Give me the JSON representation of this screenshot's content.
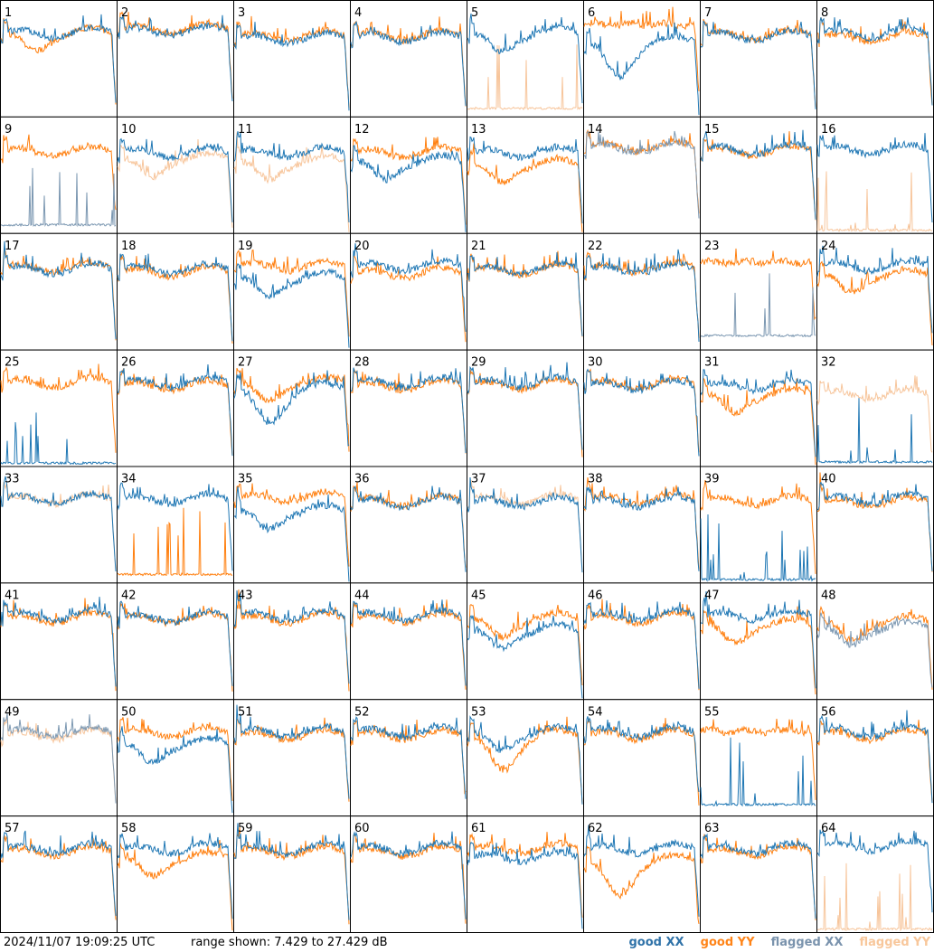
{
  "colors": {
    "good_xx": "#1f77b4",
    "good_yy": "#ff7f0e",
    "flagged_xx": "#7b97b1",
    "flagged_yy": "#f7c59b",
    "border": "#000000",
    "background": "#ffffff"
  },
  "footer": {
    "timestamp": "2024/11/07 19:09:25 UTC",
    "range_text": "range shown: 7.429 to 27.429 dB"
  },
  "legend": {
    "good_xx": "good XX",
    "good_yy": "good YY",
    "flagged_xx": "flagged XX",
    "flagged_yy": "flagged YY"
  },
  "chart_data": {
    "type": "line",
    "ylim": [
      7.429,
      27.429
    ],
    "grid": {
      "rows": 8,
      "cols": 8
    },
    "xlabel": "",
    "ylabel": "",
    "panels": [
      {
        "label": "1",
        "xx": {
          "status": "good",
          "profile": "normal",
          "level": 21.5
        },
        "yy": {
          "status": "good",
          "profile": "dip",
          "level": 21.5
        }
      },
      {
        "label": "2",
        "xx": {
          "status": "good",
          "profile": "normal",
          "level": 21.8
        },
        "yy": {
          "status": "good",
          "profile": "normal",
          "level": 22.3
        }
      },
      {
        "label": "3",
        "xx": {
          "status": "good",
          "profile": "normal",
          "level": 20.6
        },
        "yy": {
          "status": "good",
          "profile": "normal",
          "level": 21.0
        }
      },
      {
        "label": "4",
        "xx": {
          "status": "good",
          "profile": "normal",
          "level": 20.8
        },
        "yy": {
          "status": "good",
          "profile": "normal",
          "level": 21.0
        }
      },
      {
        "label": "5",
        "xx": {
          "status": "good",
          "profile": "dip",
          "level": 21.5
        },
        "yy": {
          "status": "flagged",
          "profile": "spikes",
          "level": 8.5
        }
      },
      {
        "label": "6",
        "xx": {
          "status": "good",
          "profile": "deepdip",
          "level": 18.0
        },
        "yy": {
          "status": "good",
          "profile": "flat",
          "level": 23.3
        }
      },
      {
        "label": "7",
        "xx": {
          "status": "good",
          "profile": "normal",
          "level": 21.0
        },
        "yy": {
          "status": "good",
          "profile": "normal",
          "level": 21.2
        }
      },
      {
        "label": "8",
        "xx": {
          "status": "good",
          "profile": "normal",
          "level": 21.5
        },
        "yy": {
          "status": "good",
          "profile": "normal",
          "level": 20.8
        }
      },
      {
        "label": "9",
        "xx": {
          "status": "flagged",
          "profile": "spikes",
          "level": 8.5
        },
        "yy": {
          "status": "good",
          "profile": "normal",
          "level": 21.2
        }
      },
      {
        "label": "10",
        "xx": {
          "status": "good",
          "profile": "normal",
          "level": 21.0
        },
        "yy": {
          "status": "flagged",
          "profile": "dip",
          "level": 20.0
        }
      },
      {
        "label": "11",
        "xx": {
          "status": "good",
          "profile": "normal",
          "level": 21.0
        },
        "yy": {
          "status": "flagged",
          "profile": "dip",
          "level": 19.5
        }
      },
      {
        "label": "12",
        "xx": {
          "status": "good",
          "profile": "dip",
          "level": 19.5
        },
        "yy": {
          "status": "good",
          "profile": "normal",
          "level": 21.0
        }
      },
      {
        "label": "13",
        "xx": {
          "status": "good",
          "profile": "normal",
          "level": 21.0
        },
        "yy": {
          "status": "good",
          "profile": "dip",
          "level": 19.0
        }
      },
      {
        "label": "14",
        "xx": {
          "status": "flagged",
          "profile": "normal",
          "level": 21.8
        },
        "yy": {
          "status": "good",
          "profile": "normal",
          "level": 22.0
        }
      },
      {
        "label": "15",
        "xx": {
          "status": "good",
          "profile": "normal",
          "level": 21.5
        },
        "yy": {
          "status": "good",
          "profile": "normal",
          "level": 21.2
        }
      },
      {
        "label": "16",
        "xx": {
          "status": "good",
          "profile": "normal",
          "level": 21.5
        },
        "yy": {
          "status": "flagged",
          "profile": "spikes",
          "level": 7.6
        }
      },
      {
        "label": "17",
        "xx": {
          "status": "good",
          "profile": "normal",
          "level": 21.0
        },
        "yy": {
          "status": "good",
          "profile": "normal",
          "level": 21.3
        }
      },
      {
        "label": "18",
        "xx": {
          "status": "good",
          "profile": "normal",
          "level": 21.0
        },
        "yy": {
          "status": "good",
          "profile": "normal",
          "level": 20.5
        }
      },
      {
        "label": "19",
        "xx": {
          "status": "good",
          "profile": "dip",
          "level": 19.5
        },
        "yy": {
          "status": "good",
          "profile": "normal",
          "level": 21.5
        }
      },
      {
        "label": "20",
        "xx": {
          "status": "good",
          "profile": "normal",
          "level": 21.5
        },
        "yy": {
          "status": "good",
          "profile": "normal",
          "level": 20.3
        }
      },
      {
        "label": "21",
        "xx": {
          "status": "good",
          "profile": "normal",
          "level": 21.0
        },
        "yy": {
          "status": "good",
          "profile": "normal",
          "level": 20.8
        }
      },
      {
        "label": "22",
        "xx": {
          "status": "good",
          "profile": "normal",
          "level": 21.0
        },
        "yy": {
          "status": "good",
          "profile": "normal",
          "level": 21.2
        }
      },
      {
        "label": "23",
        "xx": {
          "status": "flagged",
          "profile": "spikes",
          "level": 9.5
        },
        "yy": {
          "status": "good",
          "profile": "flat",
          "level": 22.5
        }
      },
      {
        "label": "24",
        "xx": {
          "status": "good",
          "profile": "normal",
          "level": 21.5
        },
        "yy": {
          "status": "good",
          "profile": "dip",
          "level": 20.0
        }
      },
      {
        "label": "25",
        "xx": {
          "status": "good",
          "profile": "spikes",
          "level": 7.6
        },
        "yy": {
          "status": "good",
          "profile": "normal",
          "level": 21.5
        }
      },
      {
        "label": "26",
        "xx": {
          "status": "good",
          "profile": "normal",
          "level": 21.5
        },
        "yy": {
          "status": "good",
          "profile": "normal",
          "level": 21.0
        }
      },
      {
        "label": "27",
        "xx": {
          "status": "good",
          "profile": "deepdip",
          "level": 18.5
        },
        "yy": {
          "status": "good",
          "profile": "dip",
          "level": 21.5
        }
      },
      {
        "label": "28",
        "xx": {
          "status": "good",
          "profile": "normal",
          "level": 21.5
        },
        "yy": {
          "status": "good",
          "profile": "normal",
          "level": 21.0
        }
      },
      {
        "label": "29",
        "xx": {
          "status": "good",
          "profile": "normal",
          "level": 21.5
        },
        "yy": {
          "status": "good",
          "profile": "normal",
          "level": 21.2
        }
      },
      {
        "label": "30",
        "xx": {
          "status": "good",
          "profile": "normal",
          "level": 21.0
        },
        "yy": {
          "status": "good",
          "profile": "normal",
          "level": 21.3
        }
      },
      {
        "label": "31",
        "xx": {
          "status": "good",
          "profile": "normal",
          "level": 21.0
        },
        "yy": {
          "status": "good",
          "profile": "dip",
          "level": 19.5
        }
      },
      {
        "label": "32",
        "xx": {
          "status": "good",
          "profile": "spikes",
          "level": 7.8
        },
        "yy": {
          "status": "flagged",
          "profile": "normal",
          "level": 19.5
        }
      },
      {
        "label": "33",
        "xx": {
          "status": "good",
          "profile": "normal",
          "level": 21.5
        },
        "yy": {
          "status": "flagged",
          "profile": "normal",
          "level": 21.5
        }
      },
      {
        "label": "34",
        "xx": {
          "status": "good",
          "profile": "normal",
          "level": 21.5
        },
        "yy": {
          "status": "good",
          "profile": "spikes",
          "level": 8.5
        }
      },
      {
        "label": "35",
        "xx": {
          "status": "good",
          "profile": "dip",
          "level": 19.5
        },
        "yy": {
          "status": "good",
          "profile": "normal",
          "level": 21.8
        }
      },
      {
        "label": "36",
        "xx": {
          "status": "good",
          "profile": "normal",
          "level": 21.0
        },
        "yy": {
          "status": "good",
          "profile": "normal",
          "level": 21.2
        }
      },
      {
        "label": "37",
        "xx": {
          "status": "good",
          "profile": "normal",
          "level": 21.0
        },
        "yy": {
          "status": "flagged",
          "profile": "normal",
          "level": 21.5
        }
      },
      {
        "label": "38",
        "xx": {
          "status": "good",
          "profile": "normal",
          "level": 21.0
        },
        "yy": {
          "status": "good",
          "profile": "normal",
          "level": 21.5
        }
      },
      {
        "label": "39",
        "xx": {
          "status": "good",
          "profile": "spikes",
          "level": 7.6
        },
        "yy": {
          "status": "good",
          "profile": "normal",
          "level": 21.2
        }
      },
      {
        "label": "40",
        "xx": {
          "status": "good",
          "profile": "normal",
          "level": 21.5
        },
        "yy": {
          "status": "good",
          "profile": "normal",
          "level": 21.0
        }
      },
      {
        "label": "41",
        "xx": {
          "status": "good",
          "profile": "normal",
          "level": 21.5
        },
        "yy": {
          "status": "good",
          "profile": "normal",
          "level": 21.0
        }
      },
      {
        "label": "42",
        "xx": {
          "status": "good",
          "profile": "normal",
          "level": 21.2
        },
        "yy": {
          "status": "good",
          "profile": "normal",
          "level": 21.0
        }
      },
      {
        "label": "43",
        "xx": {
          "status": "good",
          "profile": "normal",
          "level": 21.5
        },
        "yy": {
          "status": "good",
          "profile": "normal",
          "level": 21.0
        }
      },
      {
        "label": "44",
        "xx": {
          "status": "good",
          "profile": "normal",
          "level": 21.5
        },
        "yy": {
          "status": "good",
          "profile": "normal",
          "level": 21.0
        }
      },
      {
        "label": "45",
        "xx": {
          "status": "good",
          "profile": "dip",
          "level": 19.0
        },
        "yy": {
          "status": "good",
          "profile": "dip",
          "level": 21.0
        }
      },
      {
        "label": "46",
        "xx": {
          "status": "good",
          "profile": "normal",
          "level": 21.5
        },
        "yy": {
          "status": "good",
          "profile": "normal",
          "level": 21.0
        }
      },
      {
        "label": "47",
        "xx": {
          "status": "good",
          "profile": "normal",
          "level": 21.5
        },
        "yy": {
          "status": "good",
          "profile": "dip",
          "level": 20.0
        }
      },
      {
        "label": "48",
        "xx": {
          "status": "flagged",
          "profile": "dip",
          "level": 19.5
        },
        "yy": {
          "status": "good",
          "profile": "dip",
          "level": 20.5
        }
      },
      {
        "label": "49",
        "xx": {
          "status": "flagged",
          "profile": "normal",
          "level": 21.5
        },
        "yy": {
          "status": "flagged",
          "profile": "normal",
          "level": 21.0
        }
      },
      {
        "label": "50",
        "xx": {
          "status": "good",
          "profile": "dip",
          "level": 19.5
        },
        "yy": {
          "status": "good",
          "profile": "normal",
          "level": 21.5
        }
      },
      {
        "label": "51",
        "xx": {
          "status": "good",
          "profile": "normal",
          "level": 21.5
        },
        "yy": {
          "status": "good",
          "profile": "normal",
          "level": 21.0
        }
      },
      {
        "label": "52",
        "xx": {
          "status": "good",
          "profile": "normal",
          "level": 21.5
        },
        "yy": {
          "status": "good",
          "profile": "normal",
          "level": 21.0
        }
      },
      {
        "label": "53",
        "xx": {
          "status": "good",
          "profile": "dip",
          "level": 21.5
        },
        "yy": {
          "status": "good",
          "profile": "deepdip",
          "level": 19.0
        }
      },
      {
        "label": "54",
        "xx": {
          "status": "good",
          "profile": "normal",
          "level": 21.5
        },
        "yy": {
          "status": "good",
          "profile": "normal",
          "level": 21.0
        }
      },
      {
        "label": "55",
        "xx": {
          "status": "good",
          "profile": "spikes",
          "level": 9.0
        },
        "yy": {
          "status": "good",
          "profile": "flat",
          "level": 22.0
        }
      },
      {
        "label": "56",
        "xx": {
          "status": "good",
          "profile": "normal",
          "level": 21.5
        },
        "yy": {
          "status": "good",
          "profile": "normal",
          "level": 21.0
        }
      },
      {
        "label": "57",
        "xx": {
          "status": "good",
          "profile": "normal",
          "level": 21.5
        },
        "yy": {
          "status": "good",
          "profile": "normal",
          "level": 21.0
        }
      },
      {
        "label": "58",
        "xx": {
          "status": "good",
          "profile": "normal",
          "level": 21.5
        },
        "yy": {
          "status": "good",
          "profile": "dip",
          "level": 20.0
        }
      },
      {
        "label": "59",
        "xx": {
          "status": "good",
          "profile": "normal",
          "level": 21.5
        },
        "yy": {
          "status": "good",
          "profile": "normal",
          "level": 21.0
        }
      },
      {
        "label": "60",
        "xx": {
          "status": "good",
          "profile": "normal",
          "level": 21.5
        },
        "yy": {
          "status": "good",
          "profile": "normal",
          "level": 21.0
        }
      },
      {
        "label": "61",
        "xx": {
          "status": "good",
          "profile": "normal",
          "level": 20.0
        },
        "yy": {
          "status": "good",
          "profile": "normal",
          "level": 21.5
        }
      },
      {
        "label": "62",
        "xx": {
          "status": "good",
          "profile": "normal",
          "level": 21.5
        },
        "yy": {
          "status": "good",
          "profile": "deepdip",
          "level": 17.5
        }
      },
      {
        "label": "63",
        "xx": {
          "status": "good",
          "profile": "normal",
          "level": 21.5
        },
        "yy": {
          "status": "good",
          "profile": "normal",
          "level": 21.0
        }
      },
      {
        "label": "64",
        "xx": {
          "status": "good",
          "profile": "normal",
          "level": 22.0
        },
        "yy": {
          "status": "flagged",
          "profile": "spikes",
          "level": 7.6
        }
      }
    ]
  }
}
